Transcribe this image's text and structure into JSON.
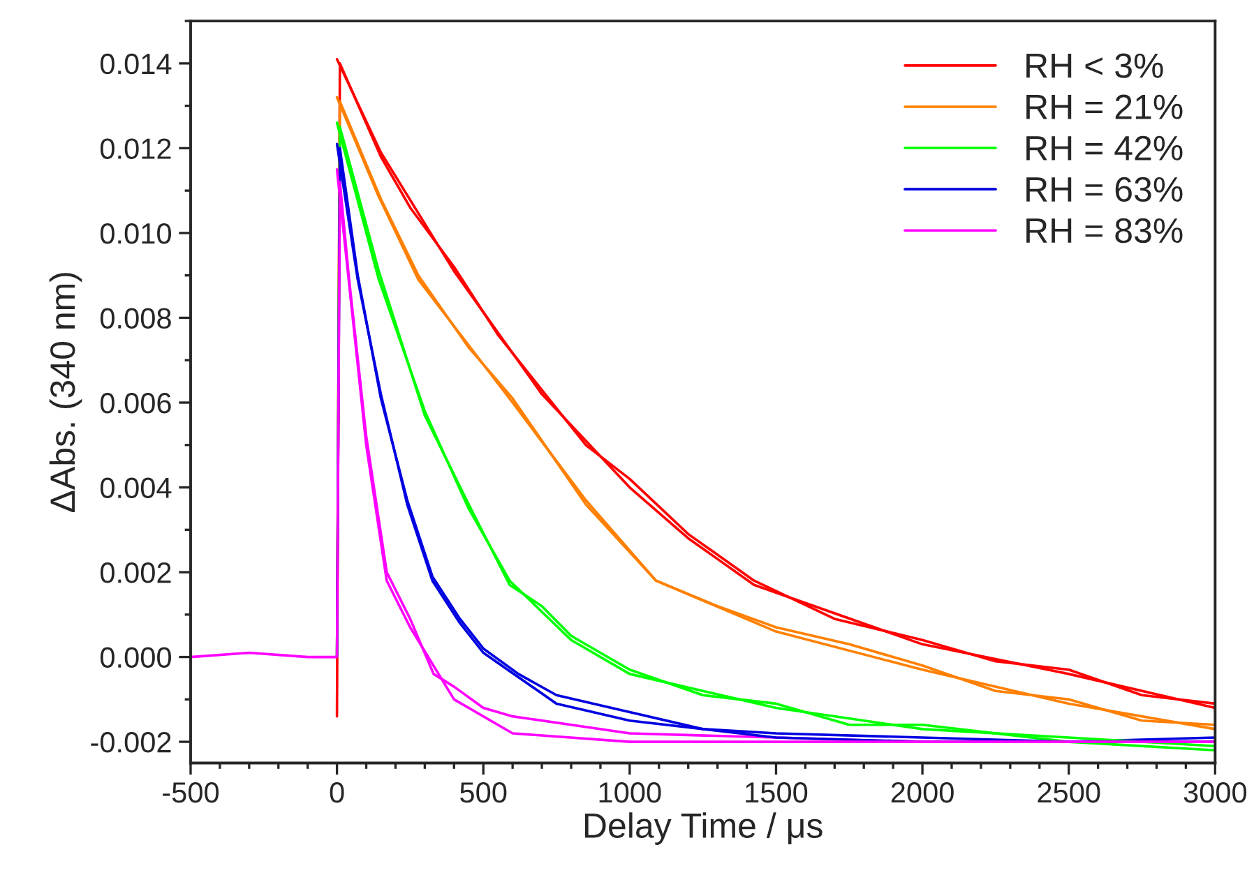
{
  "chart_data": {
    "type": "line",
    "xlabel": "Delay Time / μs",
    "ylabel": "ΔAbs. (340 nm)",
    "xlim": [
      -500,
      3000
    ],
    "xticks": [
      -500,
      0,
      500,
      1000,
      1500,
      2000,
      2500,
      3000
    ],
    "ylim": [
      -0.0025,
      0.015
    ],
    "yticks": [
      {
        "value": -0.002,
        "label": "-0.002"
      },
      {
        "value": 0.0,
        "label": "0.000"
      },
      {
        "value": 0.002,
        "label": "0.002"
      },
      {
        "value": 0.004,
        "label": "0.004"
      },
      {
        "value": 0.006,
        "label": "0.006"
      },
      {
        "value": 0.008,
        "label": "0.008"
      },
      {
        "value": 0.01,
        "label": "0.010"
      },
      {
        "value": 0.012,
        "label": "0.012"
      },
      {
        "value": 0.014,
        "label": "0.014"
      }
    ],
    "grid": false,
    "legend": "top right",
    "series": [
      {
        "name": "RH < 3%",
        "color": "#ff0000",
        "x": [
          0,
          10,
          150,
          250,
          400,
          550,
          700,
          850,
          1000,
          1200,
          1425,
          1700,
          2000,
          2250,
          2500,
          2750,
          3000
        ],
        "values": [
          -0.0014,
          0.014,
          0.0118,
          0.0106,
          0.0092,
          0.0076,
          0.0063,
          0.005,
          0.0042,
          0.0029,
          0.0018,
          0.0009,
          0.0004,
          -0.0001,
          -0.0003,
          -0.0009,
          -0.0011
        ]
      },
      {
        "name": "RH = 21%",
        "color": "#ff8000",
        "x": [
          0,
          10,
          150,
          278,
          450,
          600,
          850,
          1090,
          1300,
          1500,
          1750,
          2000,
          2250,
          2500,
          2750,
          3000
        ],
        "values": [
          0,
          0.0131,
          0.0108,
          0.009,
          0.0073,
          0.0061,
          0.0036,
          0.0018,
          0.0012,
          0.0007,
          0.0003,
          -0.0002,
          -0.0008,
          -0.001,
          -0.0015,
          -0.0016
        ]
      },
      {
        "name": "RH = 42%",
        "color": "#00ff00",
        "x": [
          0,
          10,
          143,
          300,
          450,
          590,
          700,
          800,
          1000,
          1250,
          1500,
          1750,
          2000,
          2500,
          3000
        ],
        "values": [
          0,
          0.0125,
          0.0091,
          0.0057,
          0.0036,
          0.0017,
          0.0012,
          0.0005,
          -0.0003,
          -0.0009,
          -0.0011,
          -0.0016,
          -0.0016,
          -0.002,
          -0.0022
        ]
      },
      {
        "name": "RH = 63%",
        "color": "#0000e0",
        "x": [
          0,
          10,
          71,
          150,
          240,
          326,
          420,
          500,
          620,
          750,
          1000,
          1250,
          1500,
          2000,
          2500,
          3000
        ],
        "values": [
          0,
          0.012,
          0.009,
          0.0061,
          0.0037,
          0.0019,
          0.0009,
          0.0002,
          -0.0004,
          -0.0009,
          -0.0013,
          -0.0017,
          -0.0018,
          -0.0019,
          -0.002,
          -0.0019
        ]
      },
      {
        "name": "RH = 83%",
        "color": "#ff00ff",
        "x": [
          -500,
          -300,
          -100,
          0,
          10,
          40,
          100,
          170,
          250,
          330,
          400,
          500,
          600,
          800,
          1000,
          1500,
          2000,
          2500,
          3000
        ],
        "values": [
          0,
          0.0001,
          0,
          0,
          0.0112,
          0.009,
          0.0052,
          0.002,
          0.0009,
          -0.0004,
          -0.0007,
          -0.0012,
          -0.0014,
          -0.0016,
          -0.0018,
          -0.0019,
          -0.002,
          -0.002,
          -0.002
        ]
      },
      {
        "color": "#ff0000",
        "x": [
          0,
          150,
          400,
          700,
          1000,
          1200,
          1425,
          2000,
          2500,
          3000
        ],
        "values": [
          0.0141,
          0.0119,
          0.0091,
          0.0062,
          0.004,
          0.0028,
          0.0017,
          0.0003,
          -0.0004,
          -0.0012
        ]
      },
      {
        "color": "#ff8000",
        "x": [
          0,
          140,
          278,
          600,
          850,
          1090,
          1500,
          2000,
          2500,
          3000
        ],
        "values": [
          0.0132,
          0.0109,
          0.0089,
          0.006,
          0.0037,
          0.0018,
          0.0006,
          -0.0003,
          -0.0011,
          -0.0017
        ]
      },
      {
        "color": "#00ff00",
        "x": [
          0,
          143,
          300,
          450,
          590,
          800,
          1000,
          1500,
          2000,
          2500,
          3000
        ],
        "values": [
          0.0126,
          0.0089,
          0.0058,
          0.0035,
          0.0018,
          0.0004,
          -0.0004,
          -0.0012,
          -0.0017,
          -0.0019,
          -0.0021
        ]
      },
      {
        "color": "#0000e0",
        "x": [
          0,
          71,
          150,
          240,
          326,
          420,
          500,
          750,
          1000,
          1500,
          2000,
          3000
        ],
        "values": [
          0.0121,
          0.0089,
          0.0062,
          0.0036,
          0.0018,
          0.0008,
          0.0001,
          -0.0011,
          -0.0015,
          -0.0019,
          -0.002,
          -0.002
        ]
      },
      {
        "color": "#ff00ff",
        "x": [
          0,
          40,
          100,
          170,
          250,
          400,
          600,
          1000,
          3000
        ],
        "values": [
          0.0115,
          0.0089,
          0.005,
          0.0018,
          0.0007,
          -0.001,
          -0.0018,
          -0.002,
          -0.002
        ]
      }
    ]
  }
}
